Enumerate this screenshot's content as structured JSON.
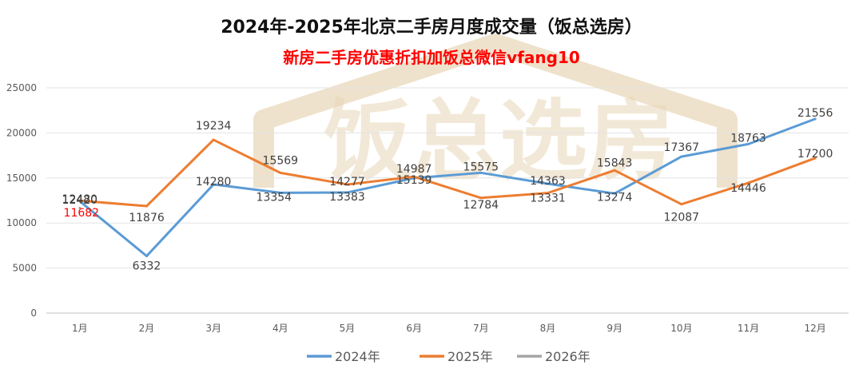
{
  "chart_data": {
    "type": "line",
    "title": "2024年-2025年北京二手房月度成交量（饭总选房）",
    "subtitle": "新房二手房优惠折扣加饭总微信vfang10",
    "watermark": "饭总选房",
    "categories": [
      "1月",
      "2月",
      "3月",
      "4月",
      "5月",
      "6月",
      "7月",
      "8月",
      "9月",
      "10月",
      "11月",
      "12月"
    ],
    "ylim": [
      0,
      25000
    ],
    "yticks": [
      0,
      5000,
      10000,
      15000,
      20000,
      25000
    ],
    "grid": true,
    "legend_position": "bottom",
    "series": [
      {
        "name": "2024年",
        "color": "#5b9bd5",
        "values": [
          12420,
          6332,
          14280,
          13354,
          13383,
          14987,
          15575,
          14363,
          13274,
          17367,
          18763,
          21556
        ]
      },
      {
        "name": "2025年",
        "color": "#ed7d31",
        "values": [
          12480,
          11876,
          19234,
          15569,
          14277,
          15139,
          12784,
          13331,
          15843,
          12087,
          14446,
          17200
        ]
      },
      {
        "name": "2026年",
        "color": "#a5a5a5",
        "label_color": "#ff0000",
        "values": [
          11682,
          null,
          null,
          null,
          null,
          null,
          null,
          null,
          null,
          null,
          null,
          null
        ]
      }
    ]
  }
}
